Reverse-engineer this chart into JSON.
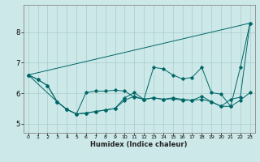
{
  "title": "",
  "xlabel": "Humidex (Indice chaleur)",
  "background_color": "#cce8e8",
  "grid_color": "#aacccc",
  "line_color": "#006666",
  "xlim": [
    -0.5,
    23.5
  ],
  "ylim": [
    4.7,
    8.9
  ],
  "yticks": [
    5,
    6,
    7,
    8
  ],
  "xticks": [
    0,
    1,
    2,
    3,
    4,
    5,
    6,
    7,
    8,
    9,
    10,
    11,
    12,
    13,
    14,
    15,
    16,
    17,
    18,
    19,
    20,
    21,
    22,
    23
  ],
  "series1_x": [
    0,
    1,
    2,
    3,
    4,
    5,
    6,
    7,
    8,
    9,
    10,
    11,
    12,
    13,
    14,
    15,
    16,
    17,
    18,
    19,
    20,
    21,
    22,
    23
  ],
  "series1_y": [
    6.6,
    6.45,
    6.25,
    5.72,
    5.47,
    5.32,
    5.35,
    5.4,
    5.45,
    5.5,
    5.77,
    5.9,
    5.8,
    5.85,
    5.8,
    5.82,
    5.77,
    5.77,
    5.8,
    5.72,
    5.57,
    5.57,
    5.77,
    6.02
  ],
  "series2_x": [
    0,
    1,
    2,
    3,
    4,
    5,
    6,
    7,
    8,
    9,
    10,
    11,
    12,
    13,
    14,
    15,
    16,
    17,
    18,
    19,
    20,
    21,
    22,
    23
  ],
  "series2_y": [
    6.6,
    6.45,
    6.25,
    5.72,
    5.47,
    5.32,
    5.35,
    5.4,
    5.45,
    5.5,
    5.85,
    6.02,
    5.8,
    5.85,
    5.8,
    5.85,
    5.8,
    5.77,
    5.9,
    5.72,
    5.57,
    5.8,
    5.87,
    8.3
  ],
  "series3_x": [
    0,
    3,
    4,
    5,
    6,
    7,
    8,
    9,
    10,
    11,
    12,
    13,
    14,
    15,
    16,
    17,
    18,
    19,
    20,
    21,
    22,
    23
  ],
  "series3_y": [
    6.6,
    5.72,
    5.47,
    5.32,
    6.02,
    6.07,
    6.07,
    6.1,
    6.07,
    5.87,
    5.8,
    6.85,
    6.8,
    6.6,
    6.47,
    6.52,
    6.85,
    6.02,
    5.97,
    5.57,
    6.85,
    8.3
  ],
  "series4_x": [
    0,
    23
  ],
  "series4_y": [
    6.6,
    8.3
  ],
  "xlabel_fontsize": 6,
  "xlabel_fontweight": "bold",
  "ytick_fontsize": 6,
  "xtick_fontsize": 4.5
}
